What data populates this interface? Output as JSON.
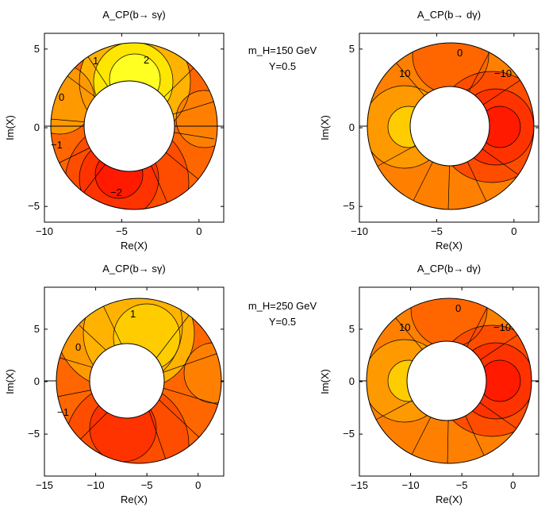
{
  "colors": {
    "c0": "#ff1a00",
    "c1": "#ff3300",
    "c2": "#ff4d00",
    "c3": "#ff6600",
    "c4": "#ff8000",
    "c5": "#ff9900",
    "c6": "#ffb300",
    "c7": "#ffcc00",
    "c8": "#ffe600",
    "c9": "#ffff22"
  },
  "annotations": [
    {
      "lines": [
        "m_H=150 GeV",
        "Y=0.5"
      ]
    },
    {
      "lines": [
        "m_H=250 GeV",
        "Y=0.5"
      ]
    }
  ],
  "chart_data": [
    {
      "type": "contour",
      "title": "A_CP(b→ sγ)",
      "xlabel": "Re(X)",
      "ylabel": "Im(X)",
      "xlim": [
        -10,
        1.6
      ],
      "ylim": [
        -6,
        6
      ],
      "xticks": [
        -10,
        -5,
        0
      ],
      "yticks": [
        -5,
        0,
        5
      ],
      "annulus": {
        "center": [
          -4.2,
          0
        ],
        "r_inner": 2.5,
        "r_outer": 5.8
      },
      "levels": [
        {
          "label": "2",
          "value": 2
        },
        {
          "label": "1",
          "value": 1
        },
        {
          "label": "0",
          "value": 0
        },
        {
          "label": "−1",
          "value": -1
        },
        {
          "label": "−2",
          "value": -2
        }
      ]
    },
    {
      "type": "contour",
      "title": "A_CP(b→ dγ)",
      "xlabel": "Re(X)",
      "ylabel": "Im(X)",
      "xlim": [
        -10,
        1.6
      ],
      "ylim": [
        -6,
        6
      ],
      "xticks": [
        -10,
        -5,
        0
      ],
      "yticks": [
        -5,
        0,
        5
      ],
      "annulus": {
        "center": [
          -4.2,
          0
        ],
        "r_inner": 2.5,
        "r_outer": 5.8
      },
      "levels": [
        {
          "label": "10",
          "value": 10
        },
        {
          "label": "0",
          "value": 0
        },
        {
          "label": "−10",
          "value": -10
        }
      ]
    },
    {
      "type": "contour",
      "title": "A_CP(b→ sγ)",
      "xlabel": "Re(X)",
      "ylabel": "Im(X)",
      "xlim": [
        -15,
        2.5
      ],
      "ylim": [
        -9,
        9
      ],
      "xticks": [
        -15,
        -10,
        -5,
        0
      ],
      "yticks": [
        -5,
        0,
        5
      ],
      "annulus": {
        "center": [
          -5.6,
          0
        ],
        "r_inner": 3.5,
        "r_outer": 8.3
      },
      "levels": [
        {
          "label": "1",
          "value": 1
        },
        {
          "label": "0",
          "value": 0
        },
        {
          "label": "−1",
          "value": -1
        }
      ]
    },
    {
      "type": "contour",
      "title": "A_CP(b→ dγ)",
      "xlabel": "Re(X)",
      "ylabel": "Im(X)",
      "xlim": [
        -15,
        2.5
      ],
      "ylim": [
        -9,
        9
      ],
      "xticks": [
        -15,
        -10,
        -5,
        0
      ],
      "yticks": [
        -5,
        0,
        5
      ],
      "annulus": {
        "center": [
          -5.6,
          0
        ],
        "r_inner": 3.5,
        "r_outer": 8.3
      },
      "levels": [
        {
          "label": "10",
          "value": 10
        },
        {
          "label": "0",
          "value": 0
        },
        {
          "label": "−10",
          "value": -10
        }
      ]
    }
  ]
}
